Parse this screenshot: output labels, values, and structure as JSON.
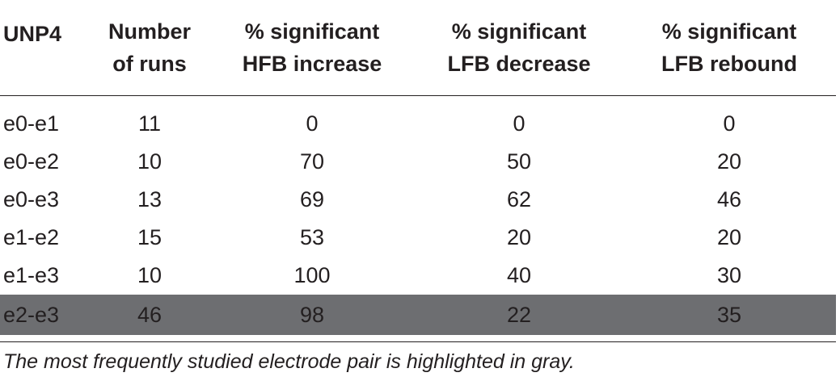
{
  "table": {
    "headers": [
      [
        "UNP4"
      ],
      [
        "Number",
        "of runs"
      ],
      [
        "% significant",
        "HFB increase"
      ],
      [
        "% significant",
        "LFB decrease"
      ],
      [
        "% significant",
        "LFB rebound"
      ]
    ],
    "rows": [
      [
        "e0-e1",
        "11",
        "0",
        "0",
        "0"
      ],
      [
        "e0-e2",
        "10",
        "70",
        "50",
        "20"
      ],
      [
        "e0-e3",
        "13",
        "69",
        "62",
        "46"
      ],
      [
        "e1-e2",
        "15",
        "53",
        "20",
        "20"
      ],
      [
        "e1-e3",
        "10",
        "100",
        "40",
        "30"
      ],
      [
        "e2-e3",
        "46",
        "98",
        "22",
        "35"
      ]
    ],
    "highlighted_row_index": 5,
    "highlight_color": "#6d6e71"
  },
  "footnote": "The most frequently studied electrode pair is highlighted in gray."
}
